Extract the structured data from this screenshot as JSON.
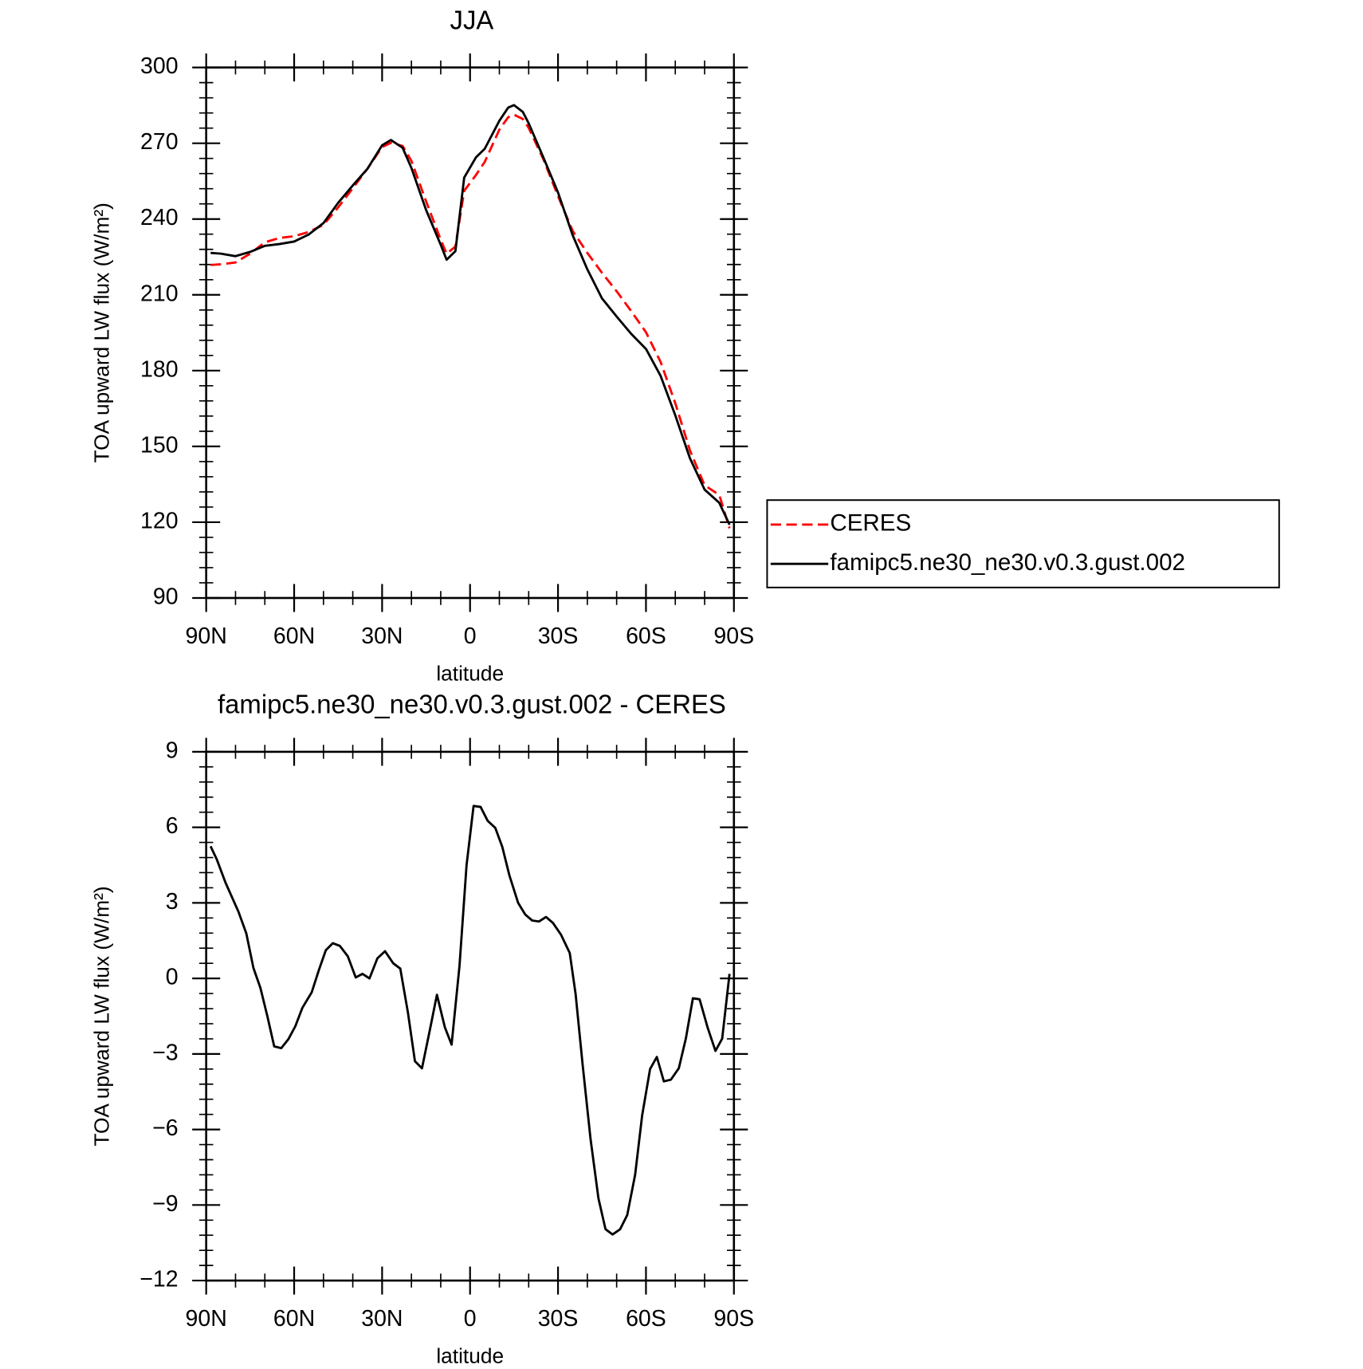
{
  "chart_data": [
    {
      "type": "line",
      "title": "JJA",
      "xlabel": "latitude",
      "ylabel": "TOA upward LW flux (W/m²)",
      "x": [
        88.5,
        85,
        80,
        75,
        70,
        65,
        60,
        55,
        50,
        45,
        40,
        35,
        30,
        27,
        23,
        20,
        15,
        10,
        8,
        5,
        2,
        -2,
        -5,
        -10,
        -13,
        -15,
        -18,
        -20,
        -25,
        -30,
        -35,
        -40,
        -45,
        -50,
        -55,
        -60,
        -65,
        -70,
        -75,
        -80,
        -85,
        -88.5
      ],
      "xlim": [
        90,
        -90
      ],
      "xticks": [
        {
          "value": 90,
          "label": "90N"
        },
        {
          "value": 60,
          "label": "60N"
        },
        {
          "value": 30,
          "label": "30N"
        },
        0,
        {
          "value": -30,
          "label": "30S"
        },
        {
          "value": -60,
          "label": "60S"
        },
        {
          "value": -90,
          "label": "90S"
        }
      ],
      "ylim": [
        90,
        300
      ],
      "yticks": [
        90,
        120,
        150,
        180,
        210,
        240,
        270,
        300
      ],
      "legend": "outside right",
      "series": [
        {
          "name": "CERES",
          "color": "#ff0000",
          "linestyle": "dashed",
          "values": [
            221.8,
            222.1,
            222.8,
            226.3,
            230.8,
            232.5,
            233.2,
            234.9,
            237.7,
            244.6,
            252.2,
            259.9,
            268.5,
            270.2,
            268.9,
            263,
            247,
            231.8,
            226.3,
            229.1,
            251.2,
            257.4,
            262.6,
            275.4,
            280.3,
            281.3,
            279.6,
            276.1,
            263.7,
            249.1,
            235.3,
            226.6,
            218.7,
            211.4,
            203.5,
            195.2,
            183.4,
            167.1,
            148.4,
            134.6,
            130.8,
            117.6
          ]
        },
        {
          "name": "famipc5.ne30_ne30.v0.3.gust.002",
          "color": "#000000",
          "linestyle": "solid",
          "values": [
            226.6,
            226.3,
            225.3,
            227,
            229.4,
            230.1,
            231.1,
            233.9,
            238.4,
            246.4,
            253.3,
            259.9,
            269.2,
            271.3,
            268.2,
            260.2,
            243.6,
            229.8,
            223.9,
            227.3,
            256.4,
            264.4,
            267.8,
            278.9,
            284.1,
            285.1,
            282.4,
            277.9,
            264.4,
            250.5,
            233.6,
            220.1,
            208.6,
            201.4,
            194.5,
            188.6,
            177.9,
            162.3,
            145.3,
            132.9,
            127.7,
            119
          ]
        }
      ]
    },
    {
      "type": "line",
      "title": "famipc5.ne30_ne30.v0.3.gust.002 - CERES",
      "xlabel": "latitude",
      "ylabel": "TOA upward LW flux (W/m²)",
      "x": [
        88.5,
        86.4,
        83.4,
        79,
        76.3,
        73.9,
        71.5,
        69.1,
        66.8,
        64.4,
        62,
        59.6,
        57.2,
        54,
        51.6,
        49.2,
        46.8,
        44.4,
        41.7,
        39,
        36.7,
        34.3,
        31.6,
        29,
        26.2,
        23.8,
        21.2,
        18.8,
        16.4,
        13.7,
        11.3,
        8.6,
        6.3,
        3.6,
        1.2,
        -1.2,
        -3.6,
        -6,
        -8.6,
        -11,
        -13.4,
        -16.4,
        -18.8,
        -21.2,
        -23.5,
        -25.9,
        -28.3,
        -31,
        -34,
        -36,
        -38.4,
        -41.1,
        -43.8,
        -46.2,
        -48.6,
        -51.2,
        -53.6,
        -56.3,
        -58.7,
        -61.4,
        -63.7,
        -66.1,
        -68.5,
        -71.2,
        -73.6,
        -76,
        -78.3,
        -81,
        -83.7,
        -86,
        -88.5
      ],
      "xlim": [
        90,
        -90
      ],
      "xticks": [
        {
          "value": 90,
          "label": "90N"
        },
        {
          "value": 60,
          "label": "60N"
        },
        {
          "value": 30,
          "label": "30N"
        },
        0,
        {
          "value": -30,
          "label": "30S"
        },
        {
          "value": -60,
          "label": "60S"
        },
        {
          "value": -90,
          "label": "90S"
        }
      ],
      "ylim": [
        -12,
        9
      ],
      "yticks": [
        {
          "value": -12,
          "label": "−12"
        },
        {
          "value": -9,
          "label": "−9"
        },
        {
          "value": -6,
          "label": "−6"
        },
        {
          "value": -3,
          "label": "−3"
        },
        0,
        3,
        6,
        9
      ],
      "series": [
        {
          "color": "#000000",
          "linestyle": "solid",
          "values": [
            5.25,
            4.73,
            3.8,
            2.65,
            1.78,
            0.42,
            -0.38,
            -1.52,
            -2.7,
            -2.77,
            -2.42,
            -1.9,
            -1.17,
            -0.55,
            0.32,
            1.12,
            1.4,
            1.29,
            0.88,
            0.04,
            0.18,
            0,
            0.8,
            1.08,
            0.6,
            0.39,
            -1.35,
            -3.29,
            -3.57,
            -2.04,
            -0.65,
            -1.94,
            -2.63,
            0.5,
            4.49,
            6.85,
            6.81,
            6.26,
            5.98,
            5.22,
            4.1,
            3,
            2.54,
            2.3,
            2.26,
            2.44,
            2.2,
            1.74,
            1.01,
            -0.62,
            -3.43,
            -6.38,
            -8.74,
            -9.96,
            -10.17,
            -9.96,
            -9.4,
            -7.8,
            -5.44,
            -3.6,
            -3.12,
            -4.09,
            -4.02,
            -3.57,
            -2.39,
            -0.79,
            -0.83,
            -1.94,
            -2.88,
            -2.39,
            0.18
          ]
        }
      ]
    }
  ]
}
